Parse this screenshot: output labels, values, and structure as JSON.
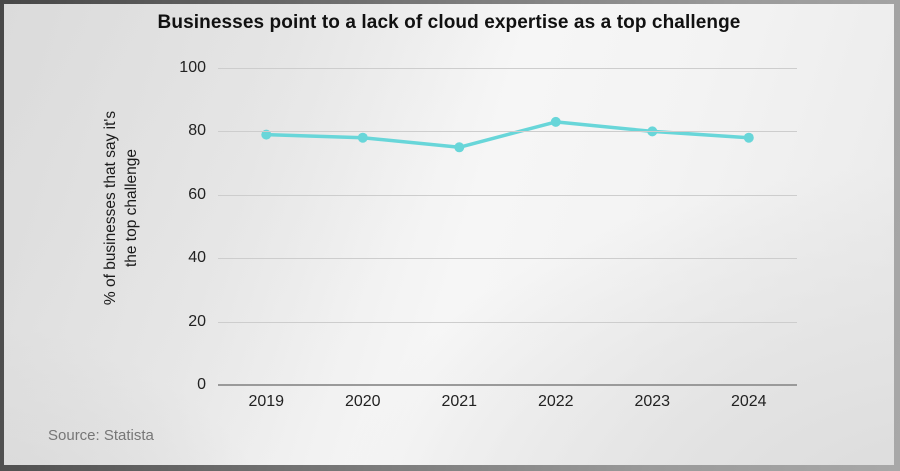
{
  "chart_data": {
    "type": "line",
    "title": "Businesses point to a lack of cloud expertise as a top challenge",
    "categories": [
      "2019",
      "2020",
      "2021",
      "2022",
      "2023",
      "2024"
    ],
    "series": [
      {
        "name": "% of businesses that say it's the top challenge",
        "values": [
          79,
          78,
          75,
          83,
          80,
          78
        ],
        "color": "#68d6d9"
      }
    ],
    "xlabel": "",
    "ylabel": "% of businesses that say it's the top challenge",
    "ylabel_lines": [
      "% of businesses that say it's",
      "the top challenge"
    ],
    "yticks": [
      0,
      20,
      40,
      60,
      80,
      100
    ],
    "ylim": [
      0,
      100
    ],
    "grid": true,
    "legend": false,
    "source": "Source: Statista"
  },
  "colors": {
    "accent": "#68d6d9",
    "gridline": "#cdcdcd",
    "axis_line": "#9a9a9a",
    "title_text": "#111111",
    "tick_text": "#222222",
    "source_text": "#767676"
  }
}
